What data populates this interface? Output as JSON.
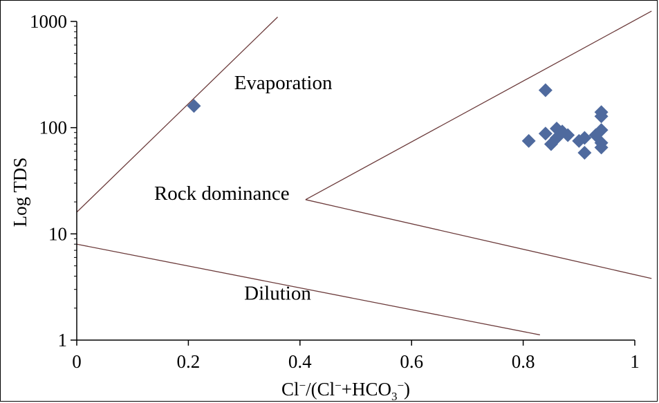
{
  "chart_data": {
    "type": "scatter",
    "xlabel": "Cl⁻/(Cl⁻+HCO₃⁻)",
    "ylabel": "Log TDS",
    "xlim": [
      0,
      1
    ],
    "ylim": [
      1,
      1000
    ],
    "y_scale": "log",
    "x_ticks": [
      "0",
      "0.2",
      "0.4",
      "0.6",
      "0.8",
      "1"
    ],
    "y_ticks": [
      "1",
      "10",
      "100",
      "1000"
    ],
    "grid": false,
    "legend": "none",
    "marker_color": "#4F6A9E",
    "line_color": "#6B3A3A",
    "annotations": [
      {
        "text": "Evaporation",
        "x": 0.37,
        "y": 230
      },
      {
        "text": "Rock dominance",
        "x": 0.26,
        "y": 21
      },
      {
        "text": "Dilution",
        "x": 0.36,
        "y": 2.4
      }
    ],
    "boundary_lines": [
      {
        "name": "upper",
        "x": [
          0,
          0.36
        ],
        "y": [
          16,
          1100
        ]
      },
      {
        "name": "middle-upper",
        "x": [
          0.41,
          1.03
        ],
        "y": [
          21,
          1250
        ]
      },
      {
        "name": "middle-lower",
        "x": [
          0.41,
          1.03
        ],
        "y": [
          21,
          3.8
        ]
      },
      {
        "name": "lower",
        "x": [
          0,
          0.83
        ],
        "y": [
          8,
          1.12
        ]
      }
    ],
    "series": [
      {
        "points": [
          {
            "x": 0.21,
            "y": 160
          },
          {
            "x": 0.84,
            "y": 225
          },
          {
            "x": 0.81,
            "y": 75
          },
          {
            "x": 0.84,
            "y": 88
          },
          {
            "x": 0.85,
            "y": 70
          },
          {
            "x": 0.86,
            "y": 98
          },
          {
            "x": 0.86,
            "y": 80
          },
          {
            "x": 0.87,
            "y": 92
          },
          {
            "x": 0.88,
            "y": 85
          },
          {
            "x": 0.9,
            "y": 75
          },
          {
            "x": 0.91,
            "y": 58
          },
          {
            "x": 0.91,
            "y": 80
          },
          {
            "x": 0.93,
            "y": 85
          },
          {
            "x": 0.94,
            "y": 140
          },
          {
            "x": 0.94,
            "y": 128
          },
          {
            "x": 0.94,
            "y": 95
          },
          {
            "x": 0.94,
            "y": 72
          },
          {
            "x": 0.94,
            "y": 65
          }
        ]
      }
    ]
  }
}
